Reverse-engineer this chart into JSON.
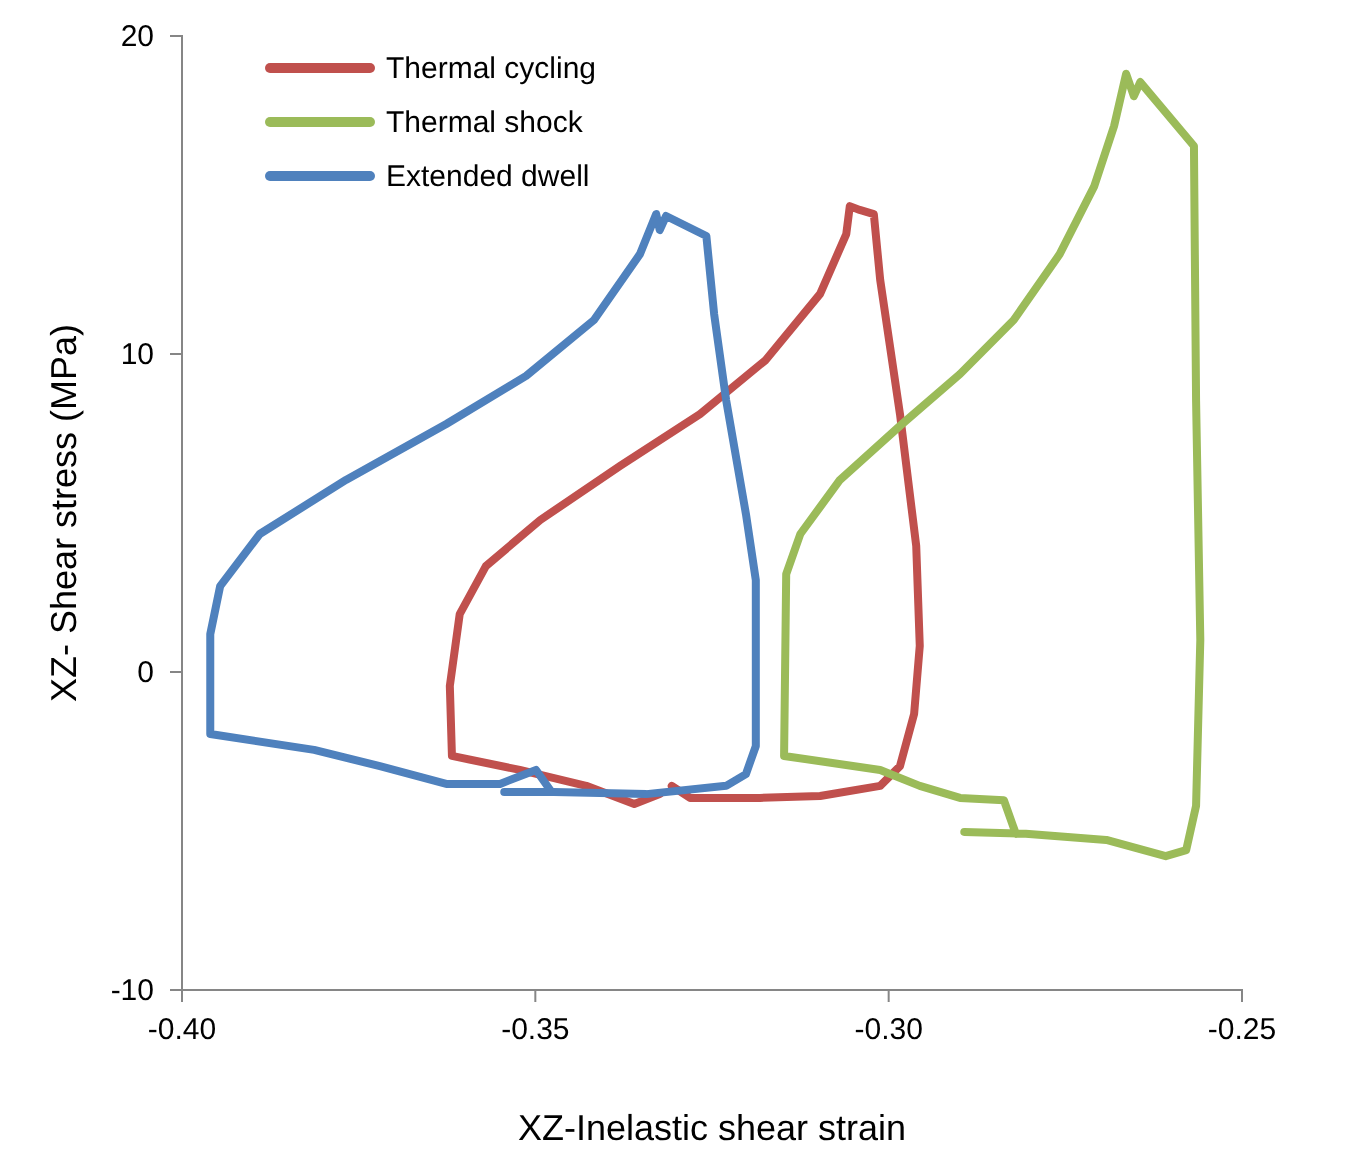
{
  "chart_data": {
    "type": "line",
    "xlabel": "XZ-Inelastic shear strain",
    "ylabel": "XZ- Shear stress (MPa)",
    "xlim": [
      -0.4,
      -0.25
    ],
    "xticks": [
      {
        "value": -0.4,
        "label": "-0.40"
      },
      {
        "value": -0.35,
        "label": "-0.35"
      },
      {
        "value": -0.3,
        "label": "-0.30"
      },
      {
        "value": -0.25,
        "label": "-0.25"
      }
    ],
    "ylim": [
      -10,
      20
    ],
    "yticks": [
      -10,
      0,
      10,
      20
    ],
    "grid": false,
    "legend": "top left",
    "marker": "none",
    "line_style": "solid",
    "series": [
      {
        "name": "Thermal cycling",
        "color": "#c0504d",
        "x": [
          -0.3307,
          -0.3281,
          -0.3182,
          -0.3097,
          -0.3012,
          -0.2984,
          -0.2964,
          -0.2956,
          -0.2961,
          -0.2984,
          -0.3012,
          -0.3021,
          -0.3041,
          -0.3055,
          -0.306,
          -0.3097,
          -0.3174,
          -0.3267,
          -0.338,
          -0.3493,
          -0.357,
          -0.3607,
          -0.3621,
          -0.3618,
          -0.3522,
          -0.3428,
          -0.336,
          -0.3324
        ],
        "values": [
          -3.58,
          -3.96,
          -3.96,
          -3.9,
          -3.58,
          -2.96,
          -1.32,
          0.82,
          3.96,
          8.11,
          12.33,
          14.4,
          14.53,
          14.65,
          13.77,
          11.89,
          9.81,
          8.11,
          6.48,
          4.78,
          3.33,
          1.82,
          -0.44,
          -2.64,
          -3.08,
          -3.58,
          -4.15,
          -3.84
        ]
      },
      {
        "name": "Thermal shock",
        "color": "#9bbb59",
        "x": [
          -0.2893,
          -0.2806,
          -0.2692,
          -0.2608,
          -0.2579,
          -0.2565,
          -0.2559,
          -0.2565,
          -0.2568,
          -0.2644,
          -0.2653,
          -0.2664,
          -0.2681,
          -0.2709,
          -0.2758,
          -0.2823,
          -0.2899,
          -0.2984,
          -0.3069,
          -0.3125,
          -0.3145,
          -0.3148,
          -0.3012,
          -0.2956,
          -0.2899,
          -0.2837,
          -0.282
        ],
        "values": [
          -5.03,
          -5.09,
          -5.28,
          -5.79,
          -5.6,
          -4.21,
          1.01,
          8.55,
          16.54,
          18.55,
          18.11,
          18.81,
          17.17,
          15.28,
          13.14,
          11.07,
          9.37,
          7.74,
          6.04,
          4.34,
          3.08,
          -2.64,
          -3.08,
          -3.58,
          -3.96,
          -4.03,
          -5.09
        ]
      },
      {
        "name": "Extended dwell",
        "color": "#4f81bd",
        "x": [
          -0.3544,
          -0.3474,
          -0.3343,
          -0.323,
          -0.3202,
          -0.3188,
          -0.3188,
          -0.3202,
          -0.323,
          -0.3247,
          -0.3258,
          -0.3315,
          -0.3324,
          -0.3329,
          -0.3352,
          -0.3417,
          -0.3513,
          -0.3626,
          -0.3768,
          -0.389,
          -0.3946,
          -0.396,
          -0.396,
          -0.3813,
          -0.372,
          -0.3626,
          -0.355,
          -0.3499,
          -0.3479
        ],
        "values": [
          -3.77,
          -3.77,
          -3.84,
          -3.58,
          -3.21,
          -2.33,
          2.89,
          4.97,
          8.55,
          11.26,
          13.71,
          14.34,
          13.9,
          14.4,
          13.14,
          11.07,
          9.31,
          7.8,
          6.04,
          4.34,
          2.7,
          1.19,
          -1.95,
          -2.45,
          -2.96,
          -3.52,
          -3.52,
          -3.08,
          -3.71
        ]
      }
    ]
  }
}
